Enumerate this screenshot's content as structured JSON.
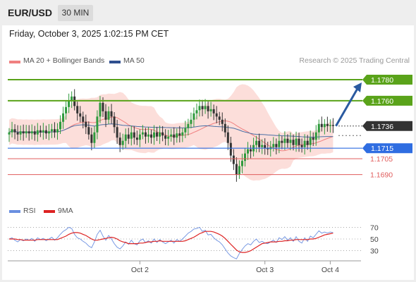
{
  "header": {
    "symbol": "EUR/USD",
    "timeframe": "30 MIN",
    "datetime": "Friday, October 3, 2025 1:02:15 PM CET",
    "credit": "Research © 2025 Trading Central"
  },
  "legend": {
    "bollinger": "MA 20 + Bollinger Bands",
    "ma50": "MA 50",
    "rsi": "RSI",
    "ma9": "9MA"
  },
  "colors": {
    "resistance": "#5aa31a",
    "pivot": "#2f6de1",
    "support": "#e05c5c",
    "current": "#333333",
    "arrow": "#2a5aa0",
    "bollinger_fill": "#fbd8d4",
    "ma20": "#f08080",
    "ma50": "#4a6fa5",
    "rsi": "#6a8fe0",
    "ma9": "#dd2222"
  },
  "chart_data": [
    {
      "type": "candlestick",
      "title": "EUR/USD 30 MIN",
      "y_range": [
        1.1665,
        1.179
      ],
      "levels": [
        {
          "label": "1.1780",
          "value": 1.178,
          "kind": "resistance"
        },
        {
          "label": "1.1760",
          "value": 1.176,
          "kind": "resistance"
        },
        {
          "label": "1.1736",
          "value": 1.1736,
          "kind": "current"
        },
        {
          "label": "1.1715",
          "value": 1.1715,
          "kind": "pivot"
        },
        {
          "label": "1.1705",
          "value": 1.1705,
          "kind": "support"
        },
        {
          "label": "1.1690",
          "value": 1.169,
          "kind": "support"
        }
      ],
      "x_ticks": [
        "Oct 2",
        "Oct 3",
        "Oct 4"
      ],
      "x_tick_index": [
        46,
        90,
        113
      ],
      "arrow": {
        "from": 1.1736,
        "to": 1.178
      },
      "close": [
        1.173,
        1.1733,
        1.173,
        1.1728,
        1.1731,
        1.1729,
        1.1731,
        1.1729,
        1.1731,
        1.1728,
        1.1732,
        1.173,
        1.1732,
        1.1729,
        1.1731,
        1.1733,
        1.173,
        1.1733,
        1.174,
        1.1748,
        1.1754,
        1.176,
        1.1764,
        1.1755,
        1.1748,
        1.1745,
        1.174,
        1.1735,
        1.1728,
        1.172,
        1.173,
        1.1745,
        1.1758,
        1.175,
        1.1742,
        1.175,
        1.1745,
        1.1735,
        1.1725,
        1.1718,
        1.1722,
        1.1728,
        1.1724,
        1.173,
        1.1725,
        1.1723,
        1.1728,
        1.173,
        1.1726,
        1.1728,
        1.1725,
        1.173,
        1.1726,
        1.173,
        1.1727,
        1.1724,
        1.1726,
        1.1728,
        1.1725,
        1.1729,
        1.1727,
        1.173,
        1.1734,
        1.1738,
        1.1742,
        1.1748,
        1.1751,
        1.1755,
        1.1752,
        1.1755,
        1.175,
        1.1752,
        1.1748,
        1.1745,
        1.1742,
        1.1738,
        1.173,
        1.172,
        1.1708,
        1.17,
        1.169,
        1.1698,
        1.1703,
        1.171,
        1.1714,
        1.1712,
        1.1718,
        1.1722,
        1.1716,
        1.1718,
        1.1715,
        1.1714,
        1.1716,
        1.1719,
        1.1716,
        1.1722,
        1.172,
        1.1724,
        1.172,
        1.1723,
        1.1718,
        1.1724,
        1.1718,
        1.1716,
        1.1722,
        1.1718,
        1.1725,
        1.1723,
        1.173,
        1.1738,
        1.1735,
        1.1738,
        1.1736,
        1.1737,
        1.1736
      ],
      "ma20_value_at_end": 1.1727,
      "ma50_value_at_end": 1.1723
    },
    {
      "type": "line",
      "title": "RSI",
      "y_ticks": [
        70,
        50,
        30
      ],
      "y_range": [
        15,
        85
      ],
      "series": [
        {
          "name": "RSI",
          "values": [
            50,
            52,
            48,
            45,
            49,
            47,
            50,
            48,
            51,
            46,
            52,
            49,
            51,
            47,
            50,
            53,
            48,
            52,
            58,
            63,
            66,
            70,
            68,
            58,
            52,
            50,
            46,
            43,
            38,
            35,
            45,
            58,
            65,
            55,
            48,
            56,
            50,
            42,
            36,
            33,
            38,
            45,
            41,
            48,
            42,
            40,
            47,
            50,
            44,
            47,
            43,
            50,
            44,
            49,
            45,
            42,
            45,
            48,
            43,
            49,
            46,
            50,
            55,
            60,
            63,
            67,
            68,
            70,
            63,
            65,
            57,
            58,
            52,
            48,
            45,
            40,
            33,
            26,
            21,
            18,
            16,
            25,
            32,
            38,
            42,
            40,
            46,
            50,
            44,
            46,
            43,
            42,
            45,
            48,
            44,
            52,
            49,
            54,
            48,
            52,
            46,
            54,
            46,
            43,
            52,
            46,
            55,
            52,
            58,
            64,
            60,
            62,
            60,
            62,
            61
          ]
        },
        {
          "name": "9MA",
          "values": [
            50,
            50,
            50,
            49,
            49,
            48,
            48,
            48,
            48,
            48,
            49,
            49,
            49,
            49,
            49,
            49,
            49,
            49,
            51,
            53,
            55,
            58,
            60,
            61,
            61,
            60,
            58,
            56,
            53,
            50,
            48,
            48,
            49,
            50,
            51,
            52,
            53,
            52,
            50,
            47,
            45,
            44,
            42,
            42,
            42,
            42,
            43,
            43,
            44,
            45,
            45,
            46,
            46,
            47,
            46,
            46,
            46,
            46,
            46,
            46,
            46,
            46,
            47,
            49,
            51,
            53,
            56,
            59,
            61,
            63,
            63,
            63,
            62,
            60,
            58,
            55,
            51,
            46,
            41,
            36,
            31,
            28,
            27,
            27,
            28,
            30,
            33,
            36,
            39,
            42,
            43,
            44,
            45,
            45,
            45,
            46,
            46,
            47,
            47,
            48,
            48,
            49,
            49,
            49,
            49,
            49,
            50,
            50,
            51,
            53,
            55,
            57,
            58,
            59,
            60
          ]
        }
      ]
    }
  ]
}
